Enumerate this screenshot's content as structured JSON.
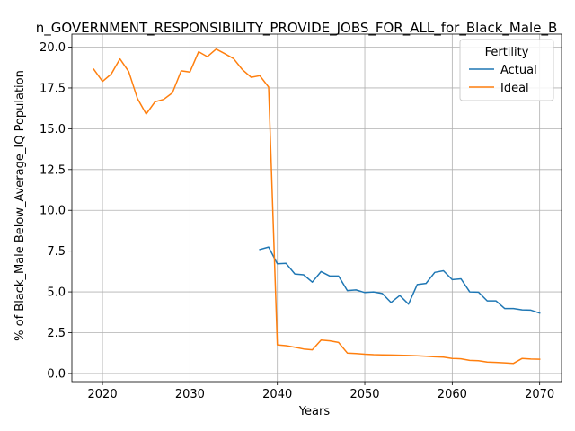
{
  "chart_data": {
    "type": "line",
    "title": "n_GOVERNMENT_RESPONSIBILITY_PROVIDE_JOBS_FOR_ALL_for_Black_Male_B",
    "xlabel": "Years",
    "ylabel": "% of Black_Male Below_Average_IQ Population",
    "xlim": [
      2016.5,
      2072.5
    ],
    "ylim": [
      -0.5,
      20.8
    ],
    "xticks": [
      2020,
      2030,
      2040,
      2050,
      2060,
      2070
    ],
    "yticks": [
      0.0,
      2.5,
      5.0,
      7.5,
      10.0,
      12.5,
      15.0,
      17.5,
      20.0
    ],
    "xtick_labels": [
      "2020",
      "2030",
      "2040",
      "2050",
      "2060",
      "2070"
    ],
    "ytick_labels": [
      "0.0",
      "2.5",
      "5.0",
      "7.5",
      "10.0",
      "12.5",
      "15.0",
      "17.5",
      "20.0"
    ],
    "grid": true,
    "legend": {
      "title": "Fertility",
      "placement": "top-right"
    },
    "series": [
      {
        "name": "Actual",
        "color": "#1f77b4",
        "x": [
          2038,
          2039,
          2040,
          2041,
          2042,
          2043,
          2044,
          2045,
          2046,
          2047,
          2048,
          2049,
          2050,
          2051,
          2052,
          2053,
          2054,
          2055,
          2056,
          2057,
          2058,
          2059,
          2060,
          2061,
          2062,
          2063,
          2064,
          2065,
          2066,
          2067,
          2068,
          2069,
          2070
        ],
        "y": [
          7.6,
          7.75,
          6.72,
          6.75,
          6.1,
          6.05,
          5.6,
          6.25,
          5.97,
          5.97,
          5.08,
          5.12,
          4.96,
          5.0,
          4.9,
          4.35,
          4.78,
          4.25,
          5.45,
          5.52,
          6.2,
          6.3,
          5.75,
          5.8,
          5.0,
          4.98,
          4.45,
          4.45,
          3.98,
          3.98,
          3.9,
          3.88,
          3.7
        ]
      },
      {
        "name": "Ideal",
        "color": "#ff7f0e",
        "x": [
          2019,
          2020,
          2021,
          2022,
          2023,
          2024,
          2025,
          2026,
          2027,
          2028,
          2029,
          2030,
          2031,
          2032,
          2033,
          2034,
          2035,
          2036,
          2037,
          2038,
          2039,
          2040,
          2041,
          2042,
          2043,
          2044,
          2045,
          2046,
          2047,
          2048,
          2049,
          2050,
          2051,
          2052,
          2053,
          2054,
          2055,
          2056,
          2057,
          2058,
          2059,
          2060,
          2061,
          2062,
          2063,
          2064,
          2065,
          2066,
          2067,
          2068,
          2069,
          2070
        ],
        "y": [
          18.65,
          17.9,
          18.35,
          19.28,
          18.5,
          16.85,
          15.9,
          16.65,
          16.8,
          17.2,
          18.55,
          18.48,
          19.72,
          19.42,
          19.88,
          19.6,
          19.3,
          18.62,
          18.15,
          18.25,
          17.55,
          1.75,
          1.7,
          1.6,
          1.5,
          1.45,
          2.05,
          2.0,
          1.9,
          1.25,
          1.22,
          1.18,
          1.15,
          1.14,
          1.13,
          1.12,
          1.1,
          1.08,
          1.05,
          1.02,
          1.0,
          0.92,
          0.9,
          0.8,
          0.78,
          0.7,
          0.68,
          0.65,
          0.62,
          0.92,
          0.88,
          0.87
        ]
      }
    ]
  }
}
